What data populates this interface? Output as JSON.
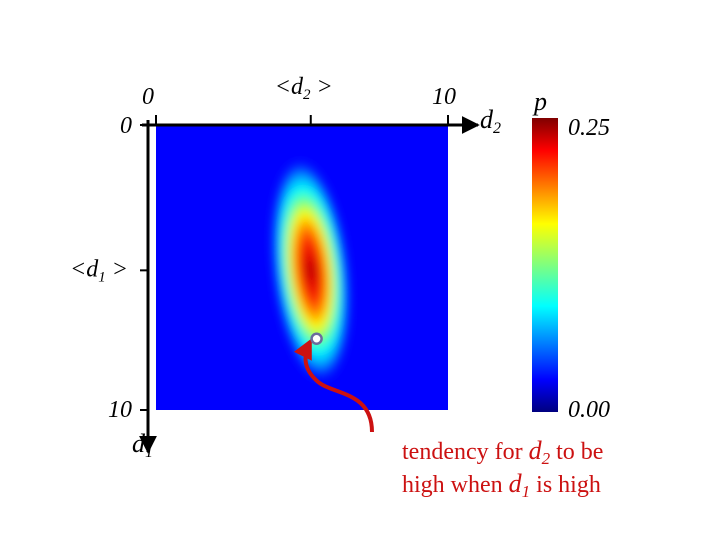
{
  "chart_data": {
    "type": "heatmap",
    "title": "",
    "x_axis": {
      "variable": "d",
      "subscript": "2",
      "ticks": [
        "0",
        "<d₂>",
        "10"
      ],
      "mean_tick_prefix": "<d",
      "mean_tick_suffix": " >",
      "range": [
        0,
        10
      ]
    },
    "y_axis": {
      "variable": "d",
      "subscript": "1",
      "ticks": [
        "0",
        "<d₁>",
        "10"
      ],
      "mean_tick_prefix": "<d",
      "mean_tick_suffix": " >",
      "range": [
        0,
        10
      ],
      "inverted": true
    },
    "colorbar": {
      "label": "p",
      "max_label": "0.25",
      "min_label": "0.00",
      "range": [
        0.0,
        0.25
      ],
      "colormap": "jet"
    },
    "distribution": {
      "mean_d2": 5.3,
      "mean_d1": 5.1,
      "sd_d2": 0.6,
      "sd_d1": 2.0,
      "correlation": 0.4
    },
    "highlight_point": {
      "d2": 5.5,
      "d1": 7.5
    },
    "annotation": {
      "line1_prefix": "tendency for ",
      "line1_var": "d",
      "line1_sub": "2",
      "line1_suffix": " to be",
      "line2_prefix": "high when ",
      "line2_var": "d",
      "line2_sub": "1",
      "line2_suffix": " is high",
      "color": "#cc1111"
    }
  }
}
